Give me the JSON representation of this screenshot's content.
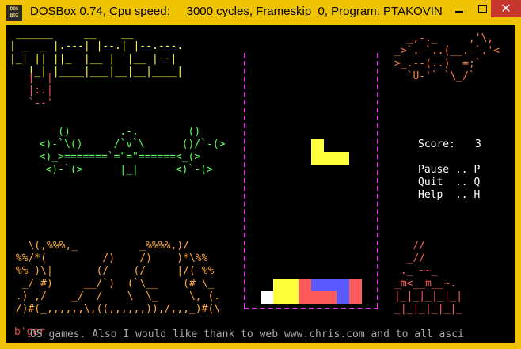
{
  "window": {
    "title": "DOSBox 0.74, Cpu speed:     3000 cycles, Frameskip  0, Program: PTAKOVIN",
    "icon_text": "DOS\nBOX",
    "controls": [
      "minimize-icon",
      "maximize-icon",
      "close-icon"
    ]
  },
  "colors": {
    "titlebar": "#f0c300",
    "screen_bg": "#000000",
    "well_border": "#e040e0",
    "piece_yellow": "#ffff3a",
    "piece_red": "#ff5a5a",
    "piece_blue": "#5a5aff",
    "piece_white": "#ffffff"
  },
  "art": {
    "logo_top": " ______     __    __    \n| _  _ |.---| |--.| |--.---.\n|_| || ||_  |__ |  |__ |--|\n   |_| |____|___|__|__|____|",
    "logo_tail": "   |  |\n   |:.|\n   `--'",
    "bird_right": "  _,-._     ,'\\,\n_>`.-`..(__.-`.'<\n>_.--(..)  =;`\n  `U-'` `\\_/`",
    "birds_middle": "     ()        .-.        ()\n  <)-`\\()     /`v`\\      ()/`-(>\n  <)_>=======`=\"=\"======<_(>\n   <)-`(>      |_|      <)`-(>",
    "tree_left": "   \\(,%%%,_          _%%%%,)/\n %%/*(         /)    /)    )*\\%%\n %% )\\|       (/    (/     |/( %%\n  _/ #)     __/`)  (`\\__    (# \\_\n .) ,/    _/  /    \\  \\_     \\, (.\n /)#(_,,,,,,\\,((,,,,,,)),/,,,_)#(\\",
    "house_right": "   //\n  _//\n ._ ~~_\n_m<__m__~.\n|_|_|_|_|_|\n_|_|_|_|_|_",
    "bger_text": "b'ger"
  },
  "hud": {
    "score_label": "Score:",
    "score_value": "3",
    "pause_label": "Pause .. P",
    "quit_label": "Quit  .. Q",
    "help_label": "Help  .. H"
  },
  "credits": "OS games. Also I would like thank to web www.chris.com and to all asci"
}
